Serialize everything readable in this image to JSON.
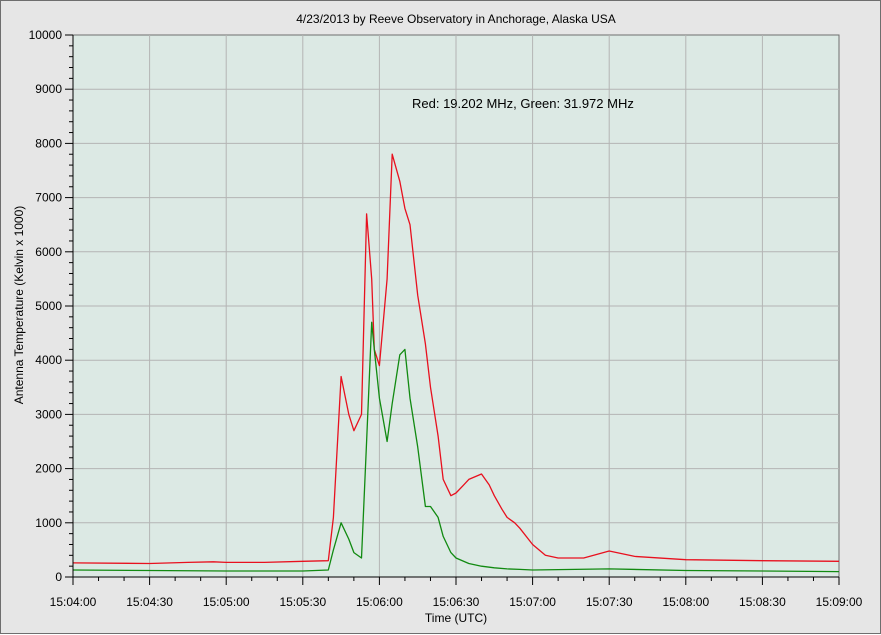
{
  "chart_data": {
    "type": "line",
    "title": "4/23/2013  by  Reeve Observatory  in  Anchorage, Alaska  USA",
    "xlabel": "Time (UTC)",
    "ylabel": "Antenna Temperature (Kelvin x 1000)",
    "annotation": "Red: 19.202 MHz, Green: 31.972 MHz",
    "xlim": [
      "15:04:00",
      "15:09:00"
    ],
    "ylim": [
      0,
      10000
    ],
    "x_ticks": [
      "15:04:00",
      "15:04:30",
      "15:05:00",
      "15:05:30",
      "15:06:00",
      "15:06:30",
      "15:07:00",
      "15:07:30",
      "15:08:00",
      "15:08:30",
      "15:09:00"
    ],
    "y_ticks": [
      0,
      1000,
      2000,
      3000,
      4000,
      5000,
      6000,
      7000,
      8000,
      9000,
      10000
    ],
    "grid": true,
    "series": [
      {
        "name": "Red",
        "color": "#e8101e",
        "x": [
          "15:04:00",
          "15:04:30",
          "15:04:45",
          "15:04:55",
          "15:05:00",
          "15:05:15",
          "15:05:30",
          "15:05:40",
          "15:05:42",
          "15:05:45",
          "15:05:48",
          "15:05:50",
          "15:05:53",
          "15:05:55",
          "15:05:57",
          "15:05:58",
          "15:06:00",
          "15:06:03",
          "15:06:05",
          "15:06:08",
          "15:06:10",
          "15:06:12",
          "15:06:15",
          "15:06:18",
          "15:06:20",
          "15:06:23",
          "15:06:25",
          "15:06:28",
          "15:06:30",
          "15:06:33",
          "15:06:35",
          "15:06:40",
          "15:06:43",
          "15:06:45",
          "15:06:48",
          "15:06:50",
          "15:06:53",
          "15:06:55",
          "15:07:00",
          "15:07:05",
          "15:07:10",
          "15:07:20",
          "15:07:30",
          "15:07:40",
          "15:08:00",
          "15:08:30",
          "15:09:00"
        ],
        "values": [
          260,
          250,
          270,
          280,
          270,
          270,
          290,
          300,
          1100,
          3700,
          3000,
          2700,
          3000,
          6700,
          5500,
          4200,
          3900,
          5500,
          7800,
          7300,
          6800,
          6500,
          5200,
          4300,
          3500,
          2600,
          1800,
          1500,
          1550,
          1700,
          1800,
          1900,
          1700,
          1500,
          1250,
          1100,
          1000,
          900,
          600,
          400,
          350,
          350,
          480,
          380,
          320,
          300,
          290
        ]
      },
      {
        "name": "Green",
        "color": "#118a11",
        "x": [
          "15:04:00",
          "15:04:30",
          "15:05:00",
          "15:05:30",
          "15:05:40",
          "15:05:42",
          "15:05:45",
          "15:05:48",
          "15:05:50",
          "15:05:53",
          "15:05:55",
          "15:05:57",
          "15:05:58",
          "15:06:00",
          "15:06:03",
          "15:06:05",
          "15:06:08",
          "15:06:10",
          "15:06:12",
          "15:06:15",
          "15:06:18",
          "15:06:20",
          "15:06:23",
          "15:06:25",
          "15:06:28",
          "15:06:30",
          "15:06:35",
          "15:06:40",
          "15:06:45",
          "15:06:50",
          "15:06:55",
          "15:07:00",
          "15:07:30",
          "15:08:00",
          "15:08:30",
          "15:09:00"
        ],
        "values": [
          130,
          120,
          110,
          110,
          130,
          500,
          1000,
          700,
          450,
          350,
          2500,
          4700,
          4200,
          3300,
          2500,
          3200,
          4100,
          4200,
          3300,
          2400,
          1300,
          1300,
          1100,
          750,
          450,
          350,
          250,
          200,
          170,
          150,
          140,
          130,
          150,
          120,
          110,
          100
        ]
      }
    ]
  }
}
